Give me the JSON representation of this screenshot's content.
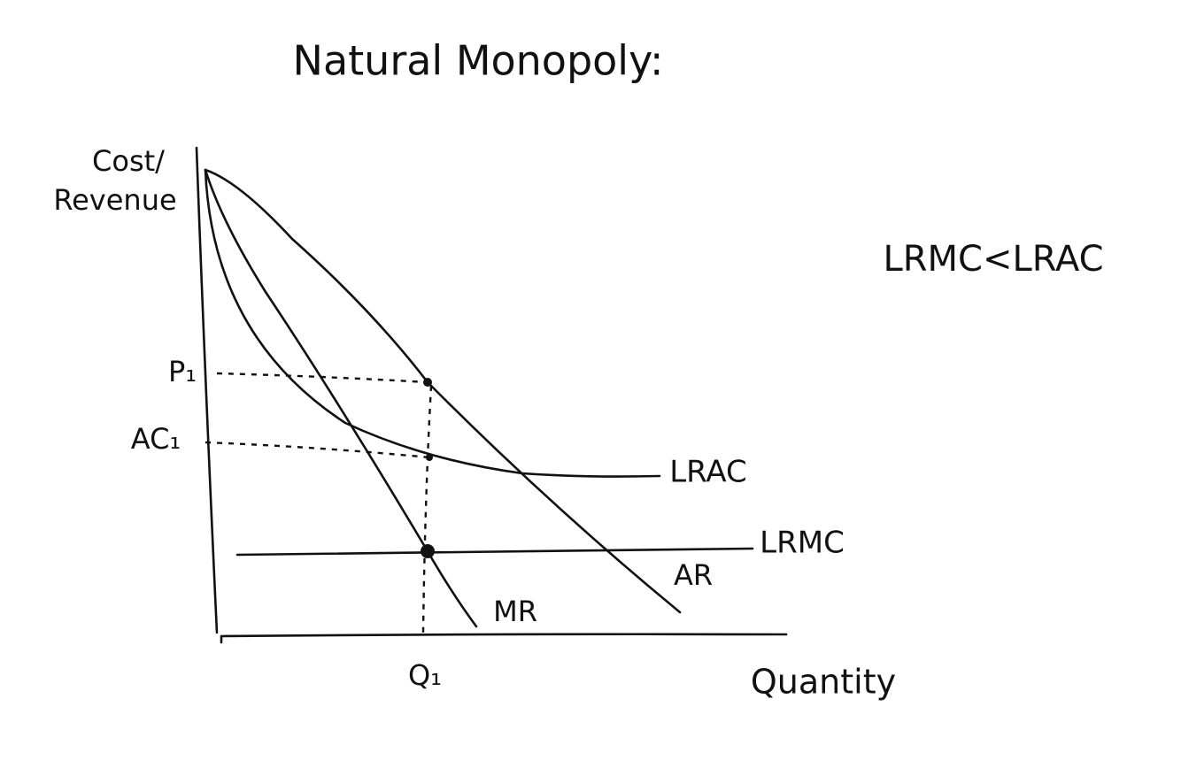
{
  "title": "Natural Monopoly:",
  "axes": {
    "y_label": [
      "Cost/",
      "Revenue"
    ],
    "x_label": "Quantity"
  },
  "points": {
    "price": "P₁",
    "average_cost": "AC₁",
    "quantity": "Q₁"
  },
  "curves": {
    "lrac": "LRAC",
    "lrmc": "LRMC",
    "ar": "AR",
    "mr": "MR"
  },
  "note": "LRMC<LRAC"
}
